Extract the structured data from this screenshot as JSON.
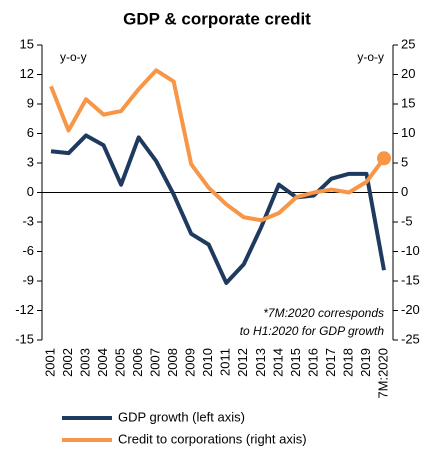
{
  "chart_data": {
    "type": "line",
    "title": "GDP & corporate credit",
    "y_unit_label": "y-o-y",
    "y2_unit_label": "y-o-y",
    "annotation": [
      "*7M:2020 corresponds",
      "to H1:2020 for GDP growth"
    ],
    "categories": [
      "2001",
      "2002",
      "2003",
      "2004",
      "2005",
      "2006",
      "2007",
      "2008",
      "2009",
      "2010",
      "2011",
      "2012",
      "2013",
      "2014",
      "2015",
      "2016",
      "2017",
      "2018",
      "2019",
      "7M:2020"
    ],
    "series": [
      {
        "name": "GDP growth (left axis)",
        "color": "#1f3a5f",
        "axis": "y",
        "values": [
          4.2,
          4.0,
          5.8,
          4.8,
          0.8,
          5.6,
          3.2,
          -0.2,
          -4.2,
          -5.3,
          -9.2,
          -7.3,
          -3.5,
          0.8,
          -0.5,
          -0.3,
          1.4,
          1.9,
          1.9,
          -7.9
        ]
      },
      {
        "name": "Credit to corporations (right axis)",
        "color": "#f79646",
        "axis": "y2",
        "highlight_last": true,
        "values": [
          18,
          10.5,
          15.8,
          13.2,
          13.8,
          17.5,
          20.7,
          18.8,
          4.8,
          0.8,
          -2,
          -4.2,
          -4.7,
          -3.5,
          -0.8,
          0.0,
          0.5,
          0,
          1.8,
          5.8
        ]
      }
    ],
    "ylim": [
      -15,
      15
    ],
    "yticks": [
      -15,
      -12,
      -9,
      -6,
      -3,
      0,
      3,
      6,
      9,
      12,
      15
    ],
    "y2lim": [
      -25,
      25
    ],
    "y2ticks": [
      -25,
      -20,
      -15,
      -10,
      -5,
      0,
      5,
      10,
      15,
      20,
      25
    ],
    "legend": "bottom"
  }
}
